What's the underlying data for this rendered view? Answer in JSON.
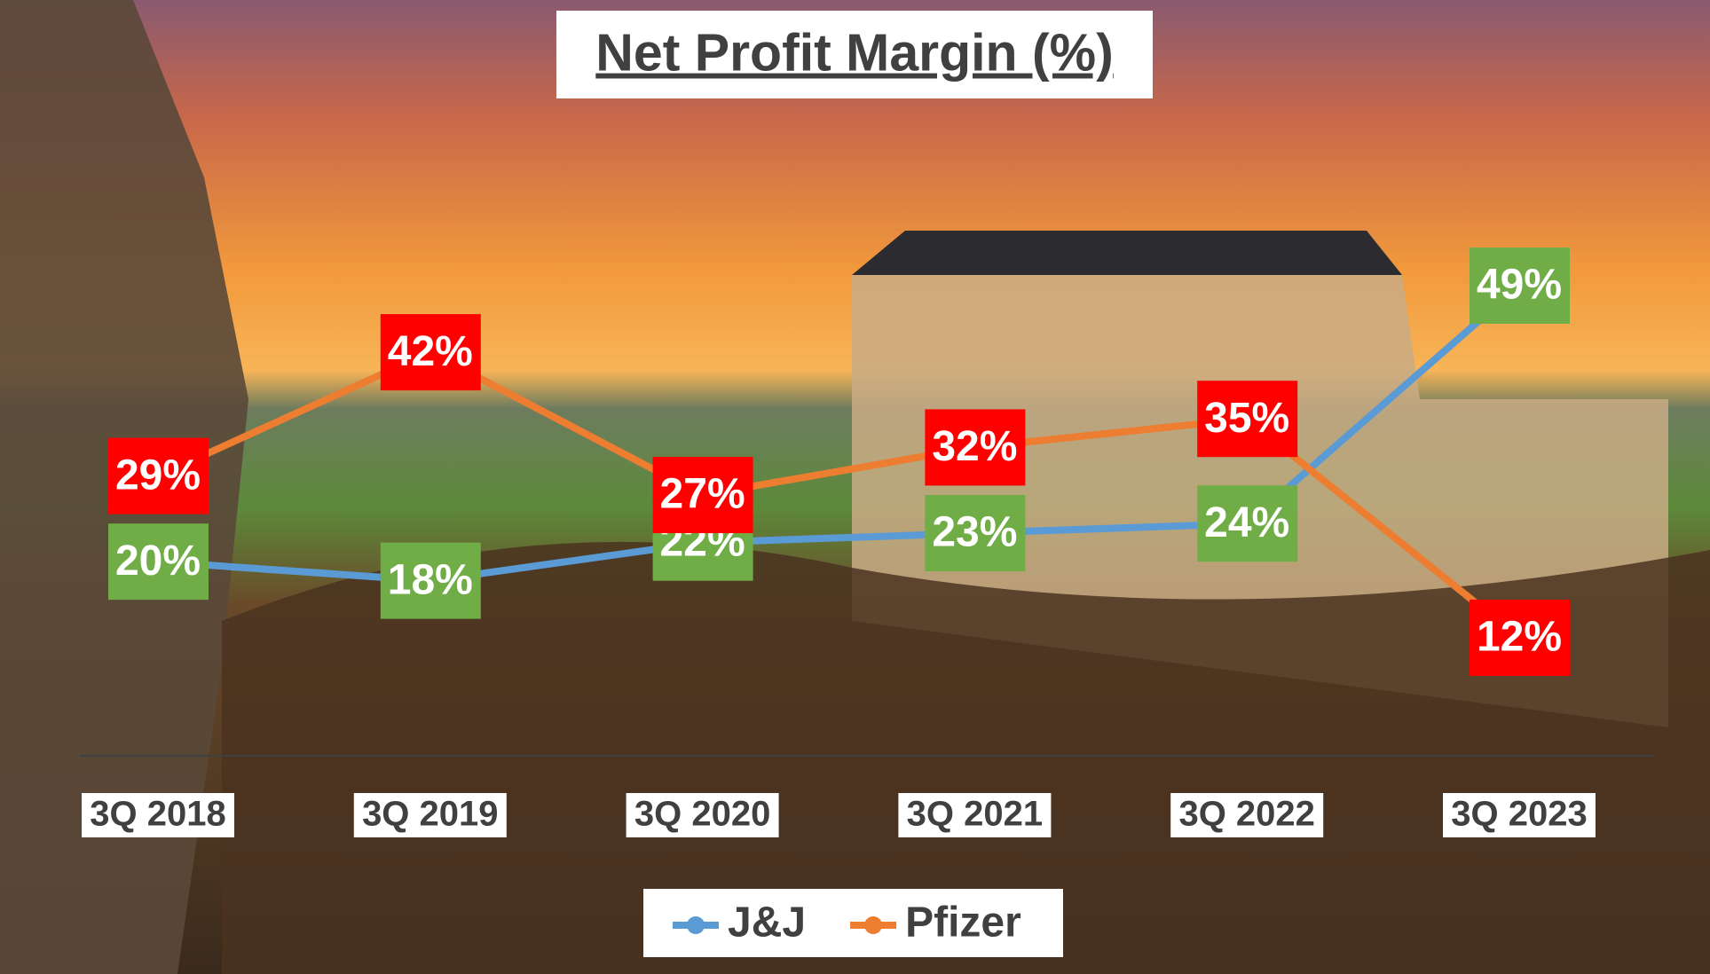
{
  "chart_data": {
    "type": "line",
    "title": "Net Profit Margin (%)",
    "categories": [
      "3Q 2018",
      "3Q 2019",
      "3Q 2020",
      "3Q 2021",
      "3Q 2022",
      "3Q 2023"
    ],
    "series": [
      {
        "name": "J&J",
        "color": "#5b9bd5",
        "label_color": "#70ad47",
        "values": [
          20,
          18,
          22,
          23,
          24,
          49
        ],
        "value_labels": [
          "20%",
          "18%",
          "22%",
          "23%",
          "24%",
          "49%"
        ]
      },
      {
        "name": "Pfizer",
        "color": "#ed7d31",
        "label_color": "#ff0000",
        "values": [
          29,
          42,
          27,
          32,
          35,
          12
        ],
        "value_labels": [
          "29%",
          "42%",
          "27%",
          "32%",
          "35%",
          "12%"
        ]
      }
    ],
    "legend": "bottom"
  }
}
